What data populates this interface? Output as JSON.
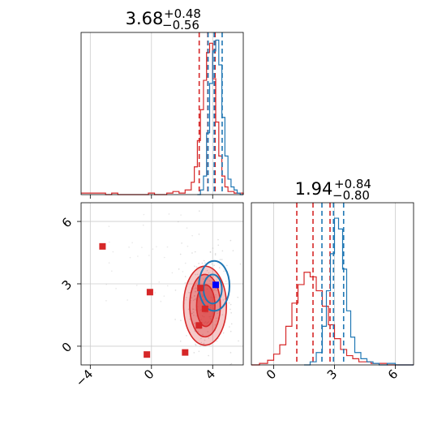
{
  "colors": {
    "red": "#d62728",
    "blue": "#1f77b4",
    "grid": "#cccccc",
    "points": "#bbbbbb"
  },
  "chart_data": [
    {
      "type": "histogram",
      "panel": "top-left",
      "title_value": "3.68",
      "title_plus": "+0.48",
      "title_minus": "−0.56",
      "xlim": [
        -4.6,
        6.0
      ],
      "xticks": [
        -4,
        0,
        4
      ],
      "grid": true,
      "series": [
        {
          "color": "red",
          "style": "step",
          "quantiles": [
            3.12,
            3.68,
            4.16
          ],
          "x": [
            -4.6,
            -4.2,
            -3.8,
            -3.4,
            -3.0,
            -2.6,
            -2.2,
            -1.8,
            -1.4,
            -1.0,
            -0.6,
            -0.2,
            0.2,
            0.6,
            1.0,
            1.4,
            1.8,
            2.2,
            2.6,
            2.8,
            3.0,
            3.2,
            3.4,
            3.6,
            3.8,
            4.0,
            4.2,
            4.4,
            4.6,
            4.8,
            5.0,
            5.4,
            6.0
          ],
          "values": [
            0.01,
            0.01,
            0.01,
            0.01,
            0.0,
            0.01,
            0.0,
            0.0,
            0.0,
            0.0,
            0.0,
            0.01,
            0.0,
            0.0,
            0.01,
            0.02,
            0.01,
            0.03,
            0.08,
            0.18,
            0.35,
            0.55,
            0.74,
            0.92,
            0.98,
            0.75,
            0.47,
            0.25,
            0.12,
            0.05,
            0.02,
            0.01,
            0.0
          ]
        },
        {
          "color": "blue",
          "style": "step",
          "quantiles": [
            3.7,
            4.1,
            4.62
          ],
          "x": [
            3.0,
            3.2,
            3.4,
            3.6,
            3.8,
            4.0,
            4.2,
            4.4,
            4.6,
            4.8,
            5.0,
            5.2,
            5.4,
            5.6,
            5.8,
            6.0
          ],
          "values": [
            0.0,
            0.03,
            0.12,
            0.4,
            0.72,
            0.93,
            1.0,
            0.84,
            0.5,
            0.25,
            0.1,
            0.05,
            0.03,
            0.01,
            0.0,
            0.0
          ]
        }
      ]
    },
    {
      "type": "scatter-contour",
      "panel": "bottom-left",
      "xlim": [
        -4.6,
        6.0
      ],
      "ylim": [
        -0.9,
        6.9
      ],
      "xticks": [
        -4,
        0,
        4
      ],
      "yticks": [
        0,
        3,
        6
      ],
      "grid": true,
      "red_markers": {
        "x": [
          -3.2,
          -0.1,
          -0.3,
          2.2,
          3.2,
          3.5,
          3.1
        ],
        "y": [
          4.8,
          2.6,
          -0.4,
          -0.3,
          2.8,
          1.8,
          1.0
        ]
      },
      "blue_markers": {
        "x": [
          4.2
        ],
        "y": [
          2.95
        ]
      },
      "red_contours": [
        {
          "cx": 3.5,
          "cy": 1.95,
          "rx": 1.4,
          "ry": 1.9,
          "fill_opacity": 0.25
        },
        {
          "cx": 3.5,
          "cy": 1.95,
          "rx": 1.0,
          "ry": 1.5,
          "fill_opacity": 0.35
        },
        {
          "cx": 3.55,
          "cy": 1.95,
          "rx": 0.6,
          "ry": 1.0,
          "fill_opacity": 0.5
        }
      ],
      "blue_contours": [
        {
          "cx": 4.1,
          "cy": 2.9,
          "rx": 1.0,
          "ry": 1.2
        },
        {
          "cx": 4.0,
          "cy": 2.75,
          "rx": 0.6,
          "ry": 0.7
        }
      ]
    },
    {
      "type": "histogram",
      "panel": "bottom-right",
      "title_value": "1.94",
      "title_plus": "+0.84",
      "title_minus": "−0.80",
      "xlim": [
        -1.1,
        6.9
      ],
      "xticks": [
        0,
        3,
        6
      ],
      "grid": true,
      "series": [
        {
          "color": "red",
          "style": "step",
          "quantiles": [
            1.14,
            1.94,
            2.78
          ],
          "x": [
            -1.1,
            -0.7,
            -0.3,
            0.0,
            0.3,
            0.6,
            0.9,
            1.2,
            1.5,
            1.8,
            2.1,
            2.4,
            2.7,
            3.0,
            3.3,
            3.6,
            3.9,
            4.2,
            4.5,
            4.8,
            5.2,
            5.6,
            6.0,
            6.9
          ],
          "values": [
            0.0,
            0.01,
            0.03,
            0.07,
            0.13,
            0.25,
            0.4,
            0.52,
            0.6,
            0.57,
            0.48,
            0.38,
            0.26,
            0.17,
            0.1,
            0.06,
            0.04,
            0.02,
            0.02,
            0.01,
            0.01,
            0.0,
            0.0,
            0.0
          ]
        },
        {
          "color": "blue",
          "style": "step",
          "quantiles": [
            2.38,
            2.95,
            3.45
          ],
          "x": [
            1.5,
            1.8,
            2.1,
            2.4,
            2.6,
            2.8,
            3.0,
            3.2,
            3.4,
            3.6,
            3.8,
            4.0,
            4.3,
            4.6,
            4.9,
            5.2,
            5.6,
            6.0,
            6.9
          ],
          "values": [
            0.0,
            0.02,
            0.08,
            0.25,
            0.48,
            0.72,
            0.95,
            0.88,
            0.62,
            0.35,
            0.18,
            0.08,
            0.04,
            0.02,
            0.01,
            0.0,
            0.01,
            0.0,
            0.0
          ]
        }
      ]
    }
  ]
}
